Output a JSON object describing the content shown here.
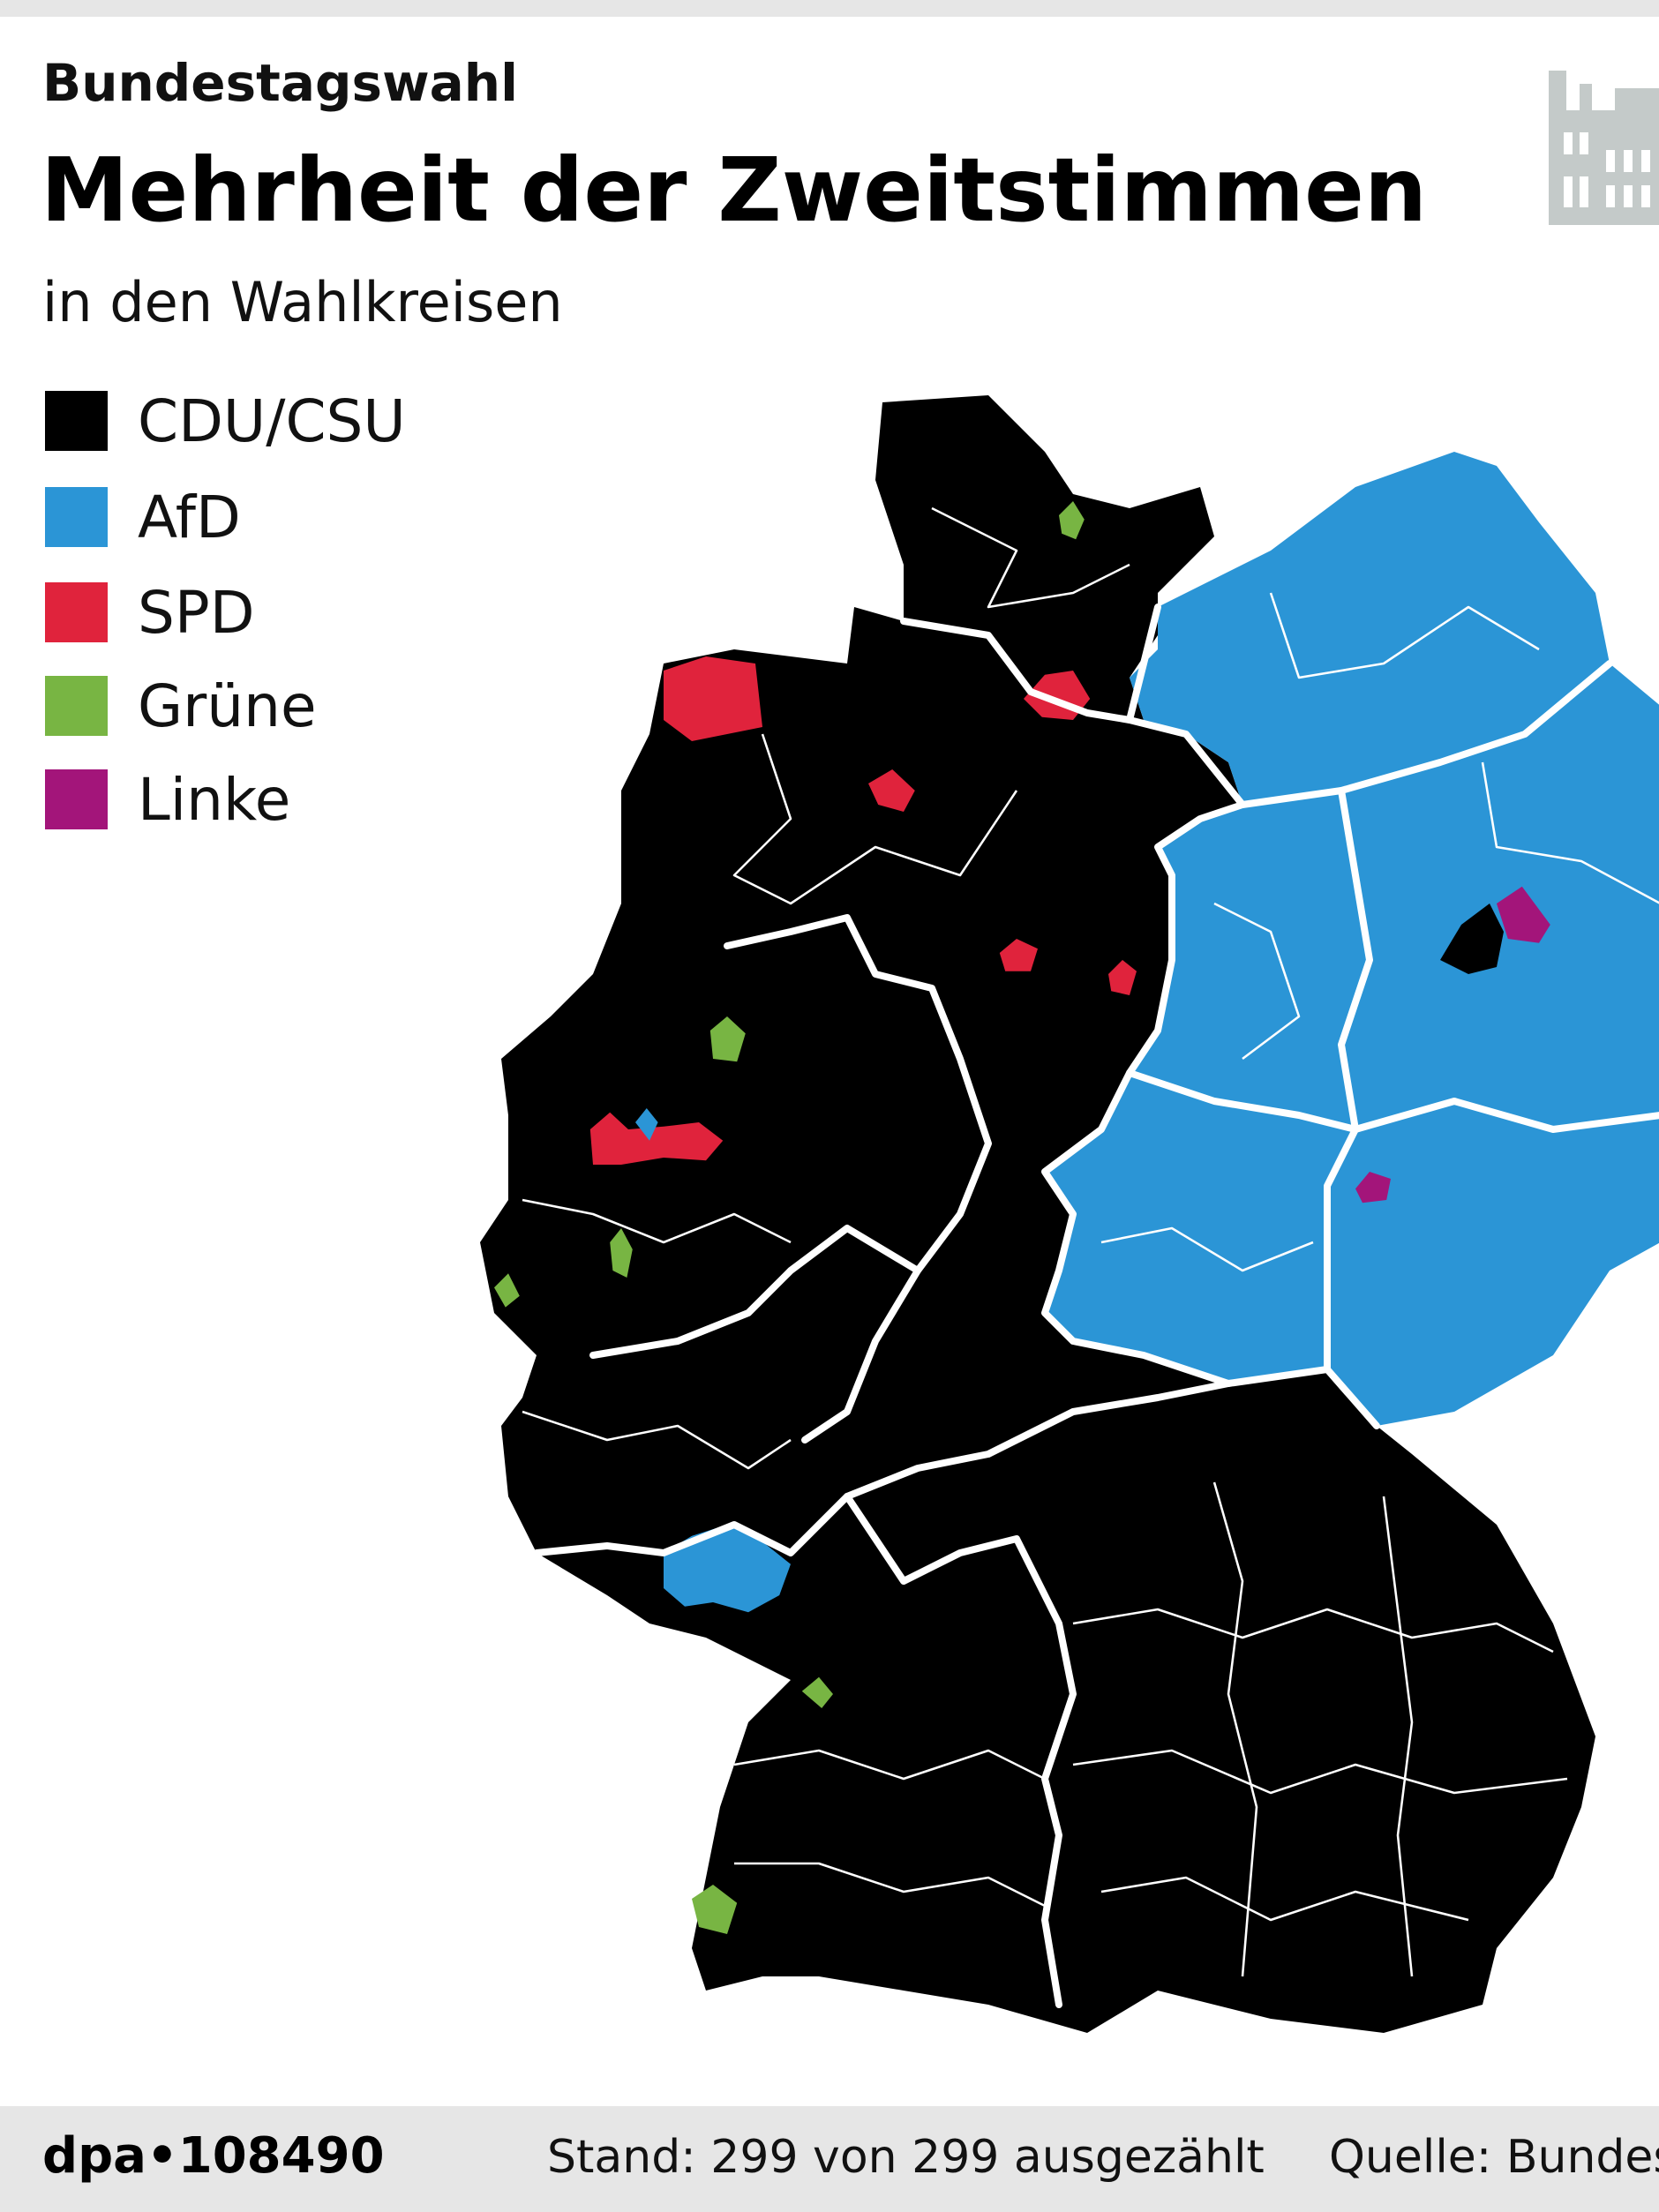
{
  "header": {
    "kicker": "Bundestagswahl",
    "title": "Mehrheit der Zweitstimmen",
    "subtitle": "in den Wahlkreisen"
  },
  "legend": [
    {
      "label": "CDU/CSU",
      "color": "#000000"
    },
    {
      "label": "AfD",
      "color": "#2b95d6"
    },
    {
      "label": "SPD",
      "color": "#e0233c"
    },
    {
      "label": "Grüne",
      "color": "#78b543"
    },
    {
      "label": "Linke",
      "color": "#a3157a"
    }
  ],
  "footer": {
    "agency": "dpa•108490",
    "status": "Stand: 299 von 299 ausgezählt",
    "source": "Quelle: Bundes"
  }
}
